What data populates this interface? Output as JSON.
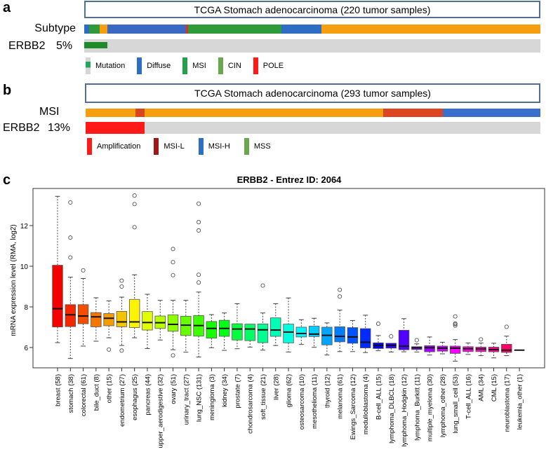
{
  "panel_a": {
    "letter": "a",
    "title": "TCGA Stomach adenocarcinoma (220 tumor samples)",
    "subtype_label": "Subtype",
    "gene_label": "ERBB2",
    "gene_pct": "5%",
    "subtype_segments": [
      {
        "from": 0.0,
        "to": 0.011,
        "color": "#2f6dc4"
      },
      {
        "from": 0.011,
        "to": 0.034,
        "color": "#2e9a3a"
      },
      {
        "from": 0.034,
        "to": 0.051,
        "color": "#f59e10"
      },
      {
        "from": 0.051,
        "to": 0.223,
        "color": "#3b68c2"
      },
      {
        "from": 0.223,
        "to": 0.228,
        "color": "#e03020"
      },
      {
        "from": 0.228,
        "to": 0.433,
        "color": "#2e9a3a"
      },
      {
        "from": 0.433,
        "to": 0.52,
        "color": "#2f6dc4"
      },
      {
        "from": 0.52,
        "to": 1.0,
        "color": "#f59e10"
      }
    ],
    "mutation_fraction": 0.05,
    "legend": [
      {
        "label": "Mutation",
        "color": "#22a85a",
        "bg": "#d6d6d6"
      },
      {
        "label": "Diffuse",
        "color": "#2e6fc4"
      },
      {
        "label": "MSI",
        "color": "#25a04a"
      },
      {
        "label": "CIN",
        "color": "#6aa84f"
      },
      {
        "label": "POLE",
        "color": "#ff1a1a"
      }
    ]
  },
  "panel_b": {
    "letter": "b",
    "title": "TCGA Stomach adenocarcinoma (293 tumor samples)",
    "msi_label": "MSI",
    "gene_label": "ERBB2",
    "gene_pct": "13%",
    "msi_segments": [
      {
        "from": 0.0,
        "to": 0.109,
        "color": "#f59e10"
      },
      {
        "from": 0.109,
        "to": 0.129,
        "color": "#d9461e"
      },
      {
        "from": 0.129,
        "to": 0.655,
        "color": "#f59e10"
      },
      {
        "from": 0.655,
        "to": 0.785,
        "color": "#dd4420"
      },
      {
        "from": 0.785,
        "to": 1.0,
        "color": "#3a6fcc"
      }
    ],
    "amplification_fraction": 0.13,
    "legend": [
      {
        "label": "Amplification",
        "color": "#ff1a1a"
      },
      {
        "label": "MSI-L",
        "color": "#a01818"
      },
      {
        "label": "MSI-H",
        "color": "#2e6fc4"
      },
      {
        "label": "MSS",
        "color": "#6aa84f"
      }
    ]
  },
  "panel_c": {
    "letter": "c"
  },
  "chart_data": {
    "type": "boxplot",
    "title": "ERBB2  -  Entrez ID: 2064",
    "xlabel": "",
    "ylabel": "mRNA expression level (RMA, log2)",
    "ylim": [
      5.0,
      13.8
    ],
    "yticks": [
      6,
      8,
      10,
      12
    ],
    "grid": false,
    "categories": [
      {
        "label": "breast (58)",
        "stats": [
          6.24,
          7.01,
          7.91,
          10.05,
          13.44
        ],
        "outliers": []
      },
      {
        "label": "stomach (38)",
        "stats": [
          5.46,
          7.03,
          7.61,
          8.11,
          9.46
        ],
        "outliers": [
          13.14,
          11.41,
          10.43
        ]
      },
      {
        "label": "colorectal (61)",
        "stats": [
          6.07,
          7.17,
          7.55,
          8.11,
          9.4
        ],
        "outliers": [
          9.8
        ]
      },
      {
        "label": "bile_duct (8)",
        "stats": [
          6.31,
          7.02,
          7.51,
          7.72,
          8.45
        ],
        "outliers": []
      },
      {
        "label": "other (15)",
        "stats": [
          6.48,
          7.07,
          7.44,
          7.67,
          8.3
        ],
        "outliers": [
          5.9
        ]
      },
      {
        "label": "endometrium (27)",
        "stats": [
          6.1,
          7.02,
          7.26,
          7.78,
          8.48
        ],
        "outliers": [
          5.85,
          9.0,
          9.29
        ]
      },
      {
        "label": "esophagus (25)",
        "stats": [
          6.48,
          6.98,
          7.26,
          8.37,
          9.58
        ],
        "outliers": [
          13.48,
          13.06,
          11.92
        ]
      },
      {
        "label": "pancreas (44)",
        "stats": [
          5.95,
          6.86,
          7.23,
          7.77,
          8.62
        ],
        "outliers": []
      },
      {
        "label": "upper_aerodigestive (32)",
        "stats": [
          6.37,
          6.94,
          7.22,
          7.55,
          8.32
        ],
        "outliers": []
      },
      {
        "label": "ovary (51)",
        "stats": [
          5.89,
          6.8,
          7.14,
          7.61,
          8.32
        ],
        "outliers": [
          5.61,
          10.85,
          10.2,
          9.56
        ]
      },
      {
        "label": "urinary_tract (27)",
        "stats": [
          5.77,
          6.59,
          7.1,
          7.54,
          8.32
        ],
        "outliers": []
      },
      {
        "label": "lung_NSC (131)",
        "stats": [
          5.53,
          6.56,
          7.08,
          7.57,
          8.73
        ],
        "outliers": [
          13.08,
          12.17,
          11.76,
          9.58,
          9.2
        ]
      },
      {
        "label": "meningioma (3)",
        "stats": [
          5.99,
          6.46,
          6.94,
          7.28,
          7.62
        ],
        "outliers": []
      },
      {
        "label": "kidney (34)",
        "stats": [
          5.86,
          6.55,
          6.94,
          7.34,
          7.7
        ],
        "outliers": []
      },
      {
        "label": "prostate (7)",
        "stats": [
          5.94,
          6.37,
          6.91,
          7.17,
          8.16
        ],
        "outliers": []
      },
      {
        "label": "chondrosarcoma (4)",
        "stats": [
          6.02,
          6.34,
          6.91,
          7.15,
          7.15
        ],
        "outliers": []
      },
      {
        "label": "soft_tissue (21)",
        "stats": [
          5.87,
          6.24,
          6.87,
          7.16,
          7.7
        ],
        "outliers": [
          9.05
        ]
      },
      {
        "label": "liver (28)",
        "stats": [
          6.1,
          6.55,
          6.86,
          7.46,
          8.16
        ],
        "outliers": []
      },
      {
        "label": "glioma (62)",
        "stats": [
          5.78,
          6.23,
          6.76,
          7.15,
          8.44
        ],
        "outliers": []
      },
      {
        "label": "osteosarcoma (10)",
        "stats": [
          6.15,
          6.52,
          6.69,
          7.0,
          7.37
        ],
        "outliers": []
      },
      {
        "label": "mesothelioma (11)",
        "stats": [
          6.01,
          6.54,
          6.66,
          7.05,
          7.44
        ],
        "outliers": []
      },
      {
        "label": "thyroid (12)",
        "stats": [
          5.63,
          6.13,
          6.6,
          7.0,
          7.21
        ],
        "outliers": []
      },
      {
        "label": "melanoma (61)",
        "stats": [
          5.8,
          6.28,
          6.55,
          7.02,
          7.84
        ],
        "outliers": [
          8.84,
          8.51
        ]
      },
      {
        "label": "Ewings_Sarcoma (12)",
        "stats": [
          5.8,
          6.21,
          6.52,
          6.98,
          7.33
        ],
        "outliers": []
      },
      {
        "label": "medulloblastoma (4)",
        "stats": [
          5.75,
          5.98,
          6.26,
          6.93,
          7.59
        ],
        "outliers": []
      },
      {
        "label": "B-cell_ALL (15)",
        "stats": [
          5.84,
          5.95,
          6.11,
          6.23,
          6.59
        ],
        "outliers": [
          7.17
        ]
      },
      {
        "label": "lymphoma_DLBCL (18)",
        "stats": [
          5.78,
          5.97,
          6.11,
          6.21,
          6.21
        ],
        "outliers": [
          6.55
        ]
      },
      {
        "label": "lymphoma_Hodgkin (12)",
        "stats": [
          5.79,
          5.89,
          6.07,
          6.85,
          7.42
        ],
        "outliers": []
      },
      {
        "label": "lymphoma_Burkitt (11)",
        "stats": [
          5.78,
          5.9,
          5.99,
          6.04,
          6.18
        ],
        "outliers": [
          6.36
        ]
      },
      {
        "label": "multiple_myeloma (30)",
        "stats": [
          5.63,
          5.79,
          5.99,
          6.09,
          6.52
        ],
        "outliers": []
      },
      {
        "label": "lymphoma_other (28)",
        "stats": [
          5.69,
          5.82,
          5.97,
          6.07,
          6.26
        ],
        "outliers": []
      },
      {
        "label": "lung_small_cell (53)",
        "stats": [
          5.33,
          5.71,
          5.97,
          6.07,
          6.39
        ],
        "outliers": [
          7.53,
          7.18,
          7.08,
          7.15
        ]
      },
      {
        "label": "T-cell_ALL (16)",
        "stats": [
          5.66,
          5.8,
          5.94,
          6.04,
          6.22
        ],
        "outliers": []
      },
      {
        "label": "AML (34)",
        "stats": [
          5.6,
          5.8,
          5.93,
          6.02,
          6.22
        ],
        "outliers": [
          6.4
        ]
      },
      {
        "label": "CML (15)",
        "stats": [
          5.49,
          5.79,
          5.9,
          6.02,
          6.21
        ],
        "outliers": []
      },
      {
        "label": "neuroblastoma (17)",
        "stats": [
          5.6,
          5.76,
          5.87,
          6.16,
          6.56
        ],
        "outliers": [
          7.02
        ]
      },
      {
        "label": "leukemia_other (1)",
        "stats": [
          5.87,
          5.87,
          5.87,
          5.87,
          5.87
        ],
        "outliers": []
      }
    ]
  }
}
